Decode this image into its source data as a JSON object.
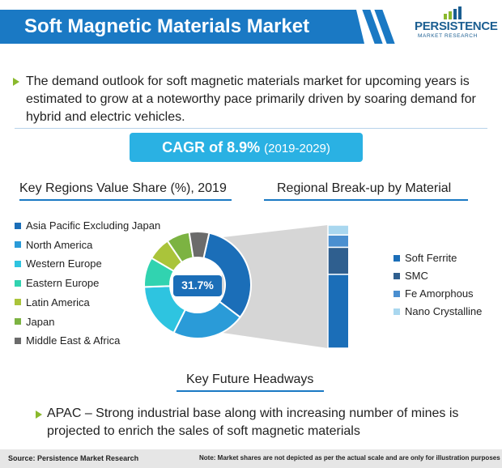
{
  "header": {
    "title": "Soft Magnetic Materials Market"
  },
  "logo": {
    "line1": "PERSISTENCE",
    "line2": "MARKET RESEARCH"
  },
  "intro": {
    "text": "The demand outlook for soft magnetic materials market for upcoming years is estimated to grow at a noteworthy pace primarily driven by soaring demand for hybrid and electric vehicles."
  },
  "cagr": {
    "label": "CAGR of 8.9%",
    "period": "(2019-2029)"
  },
  "regions_chart": {
    "title": "Key Regions Value Share (%), 2019",
    "center_label": "31.7%",
    "legend": [
      {
        "label": "Asia Pacific Excluding Japan",
        "color": "#1b6eb8"
      },
      {
        "label": "North America",
        "color": "#2a9bd8"
      },
      {
        "label": "Western Europe",
        "color": "#2ec4e0"
      },
      {
        "label": "Eastern Europe",
        "color": "#31d3b0"
      },
      {
        "label": "Latin America",
        "color": "#aac43a"
      },
      {
        "label": "Japan",
        "color": "#7cb342"
      },
      {
        "label": "Middle East & Africa",
        "color": "#6b6b6b"
      }
    ]
  },
  "material_chart": {
    "title": "Regional Break-up by Material",
    "legend": [
      {
        "label": "Soft Ferrite",
        "color": "#1b6eb8"
      },
      {
        "label": "SMC",
        "color": "#2f5f8f"
      },
      {
        "label": "Fe Amorphous",
        "color": "#4a8fd0"
      },
      {
        "label": "Nano Crystalline",
        "color": "#a9d7ef"
      }
    ]
  },
  "chart_data": [
    {
      "type": "pie",
      "title": "Key Regions Value Share (%), 2019",
      "categories": [
        "Asia Pacific Excluding Japan",
        "North America",
        "Western Europe",
        "Eastern Europe",
        "Latin America",
        "Japan",
        "Middle East & Africa"
      ],
      "values": [
        31.7,
        22,
        17,
        9,
        7,
        7,
        6
      ],
      "annotation": "31.7%"
    },
    {
      "type": "bar",
      "title": "Regional Break-up by Material",
      "categories": [
        "Asia Pacific Excluding Japan"
      ],
      "series": [
        {
          "name": "Soft Ferrite",
          "values": [
            60
          ]
        },
        {
          "name": "SMC",
          "values": [
            22
          ]
        },
        {
          "name": "Fe Amorphous",
          "values": [
            10
          ]
        },
        {
          "name": "Nano Crystalline",
          "values": [
            8
          ]
        }
      ]
    }
  ],
  "headways": {
    "title": "Key Future Headways",
    "text": "APAC – Strong industrial base along with increasing number of mines is projected to enrich the sales of soft magnetic materials"
  },
  "footer": {
    "source": "Source: Persistence Market Research",
    "note": "Note: Market shares are not depicted as per the actual scale and are only for illustration purposes"
  }
}
